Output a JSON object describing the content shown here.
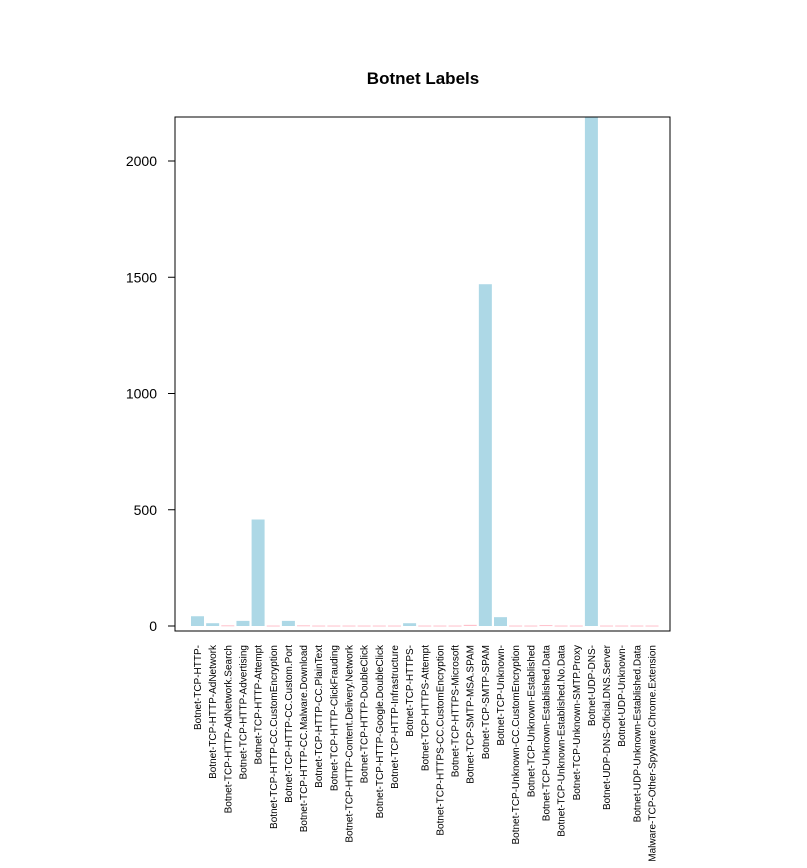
{
  "chart_data": {
    "type": "bar",
    "title": "Botnet Labels",
    "xlabel": "",
    "ylabel": "",
    "ylim": [
      0,
      2200
    ],
    "yticks": [
      0,
      500,
      1000,
      1500,
      2000
    ],
    "grid": false,
    "colors": {
      "bar": "#add8e6",
      "bar_alt": "#ffc0cb",
      "axis": "#000000"
    },
    "categories": [
      "Botnet-TCP-HTTP-",
      "Botnet-TCP-HTTP-AdNetwork",
      "Botnet-TCP-HTTP-AdNetwork.Search",
      "Botnet-TCP-HTTP-Advertising",
      "Botnet-TCP-HTTP-Attempt",
      "Botnet-TCP-HTTP-CC.CustomEncryption",
      "Botnet-TCP-HTTP-CC.Custom.Port",
      "Botnet-TCP-HTTP-CC.Malware.Download",
      "Botnet-TCP-HTTP-CC.PlainText",
      "Botnet-TCP-HTTP-ClickFrauding",
      "Botnet-TCP-HTTP-Content.Delivery.Network",
      "Botnet-TCP-HTTP-DoubleClick",
      "Botnet-TCP-HTTP-Google.DoubleClick",
      "Botnet-TCP-HTTP-Infrastructure",
      "Botnet-TCP-HTTPS-",
      "Botnet-TCP-HTTPS-Attempt",
      "Botnet-TCP-HTTPS-CC.CustomEncryption",
      "Botnet-TCP-HTTPS-Microsoft",
      "Botnet-TCP-SMTP-MSA.SPAM",
      "Botnet-TCP-SMTP-SPAM",
      "Botnet-TCP-Unknown-",
      "Botnet-TCP-Unknown-CC.CustomEncryption",
      "Botnet-TCP-Unknown-Established",
      "Botnet-TCP-Unknown-Established.Data",
      "Botnet-TCP-Unknown-Established.No.Data",
      "Botnet-TCP-Unknown-SMTP.Proxy",
      "Botnet-UDP-DNS-",
      "Botnet-UDP-DNS-Oficial.DNS.Server",
      "Botnet-UDP-Unknown-",
      "Botnet-UDP-Unknown-Established.Data",
      "Malware-TCP-Other-Spyware.Chrome.Extension"
    ],
    "values": [
      42,
      12,
      3,
      22,
      458,
      2,
      22,
      3,
      2,
      2,
      2,
      2,
      2,
      2,
      12,
      2,
      2,
      2,
      5,
      1470,
      38,
      2,
      2,
      4,
      2,
      2,
      2190,
      2,
      2,
      2,
      2
    ]
  }
}
